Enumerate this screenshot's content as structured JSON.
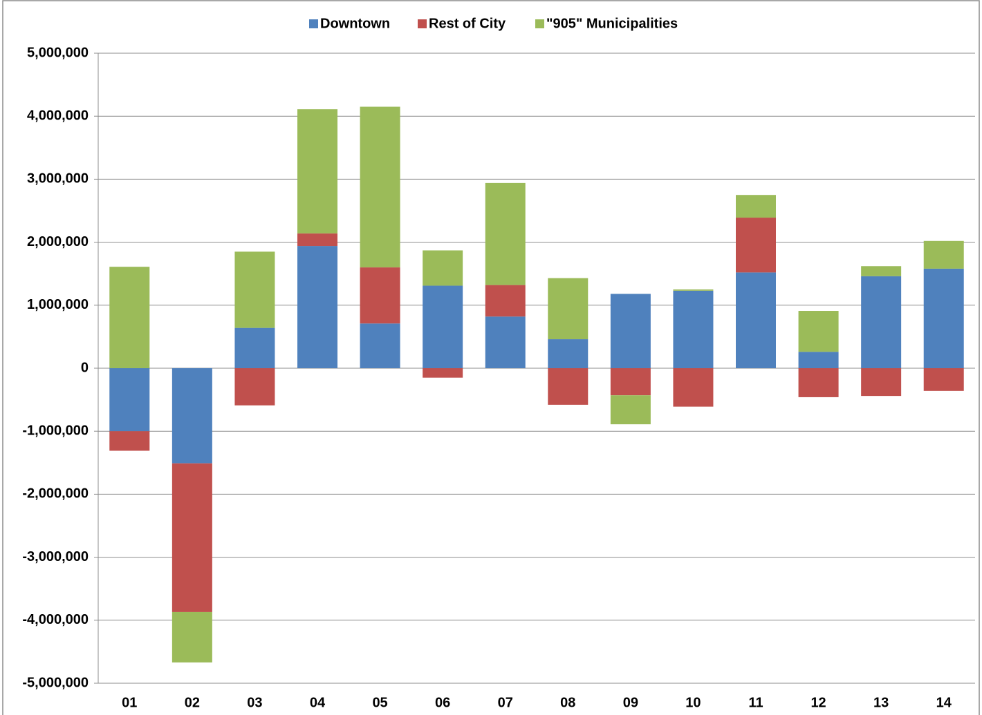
{
  "chart_data": {
    "type": "stacked_bar",
    "categories": [
      "01",
      "02",
      "03",
      "04",
      "05",
      "06",
      "07",
      "08",
      "09",
      "10",
      "11",
      "12",
      "13",
      "14"
    ],
    "series": [
      {
        "name": "Downtown",
        "color": "#4f81bd",
        "values": [
          -1000000,
          -1510000,
          640000,
          1940000,
          710000,
          1310000,
          820000,
          460000,
          1180000,
          1230000,
          1520000,
          260000,
          1460000,
          1580000
        ]
      },
      {
        "name": "Rest of City",
        "color": "#c0504d",
        "values": [
          -310000,
          -2360000,
          -590000,
          200000,
          890000,
          -150000,
          500000,
          -580000,
          -430000,
          -610000,
          870000,
          -460000,
          -440000,
          -360000
        ]
      },
      {
        "name": "\"905\" Municipalities",
        "color": "#9bbb59",
        "values": [
          1610000,
          -800000,
          1210000,
          1970000,
          2550000,
          560000,
          1620000,
          970000,
          -460000,
          20000,
          360000,
          650000,
          160000,
          440000
        ]
      }
    ],
    "ylim": [
      -5000000,
      5000000
    ],
    "yticks": [
      {
        "value": -5000000,
        "label": "-5,000,000"
      },
      {
        "value": -4000000,
        "label": "-4,000,000"
      },
      {
        "value": -3000000,
        "label": "-3,000,000"
      },
      {
        "value": -2000000,
        "label": "-2,000,000"
      },
      {
        "value": -1000000,
        "label": "-1,000,000"
      },
      0,
      {
        "value": 1000000,
        "label": "1,000,000"
      },
      {
        "value": 2000000,
        "label": "2,000,000"
      },
      {
        "value": 3000000,
        "label": "3,000,000"
      },
      {
        "value": 4000000,
        "label": "4,000,000"
      },
      {
        "value": 5000000,
        "label": "5,000,000"
      }
    ],
    "grid": true,
    "legend": "top"
  }
}
